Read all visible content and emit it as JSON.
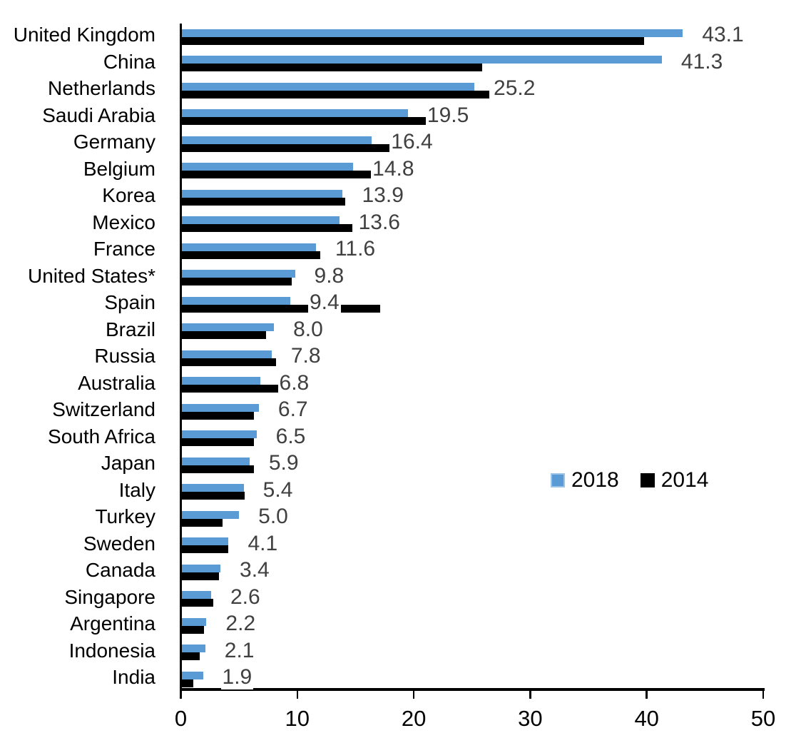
{
  "chart_data": {
    "type": "bar",
    "orientation": "horizontal",
    "title": "",
    "categories": [
      "United Kingdom",
      "China",
      "Netherlands",
      "Saudi Arabia",
      "Germany",
      "Belgium",
      "Korea",
      "Mexico",
      "France",
      "United States*",
      "Spain",
      "Brazil",
      "Russia",
      "Australia",
      "Switzerland",
      "South Africa",
      "Japan",
      "Italy",
      "Turkey",
      "Sweden",
      "Canada",
      "Singapore",
      "Argentina",
      "Indonesia",
      "India"
    ],
    "series": [
      {
        "name": "2018",
        "color": "#5B9BD5",
        "values": [
          43.1,
          41.3,
          25.2,
          19.5,
          16.4,
          14.8,
          13.9,
          13.6,
          11.6,
          9.8,
          9.4,
          8.0,
          7.8,
          6.8,
          6.7,
          6.5,
          5.9,
          5.4,
          5.0,
          4.1,
          3.4,
          2.6,
          2.2,
          2.1,
          1.9
        ]
      },
      {
        "name": "2014",
        "color": "#000000",
        "values": [
          39.8,
          25.9,
          26.5,
          21.2,
          17.9,
          17.1,
          14.1,
          14.7,
          12.0,
          9.5,
          17.1,
          7.3,
          8.2,
          9.6,
          6.3,
          6.3,
          6.3,
          5.5,
          3.6,
          4.1,
          3.3,
          2.8,
          2.0,
          1.6,
          1.1
        ]
      }
    ],
    "data_labels": {
      "series": "2018",
      "color": "#404040",
      "values": [
        "43.1",
        "41.3",
        "25.2",
        "19.5",
        "16.4",
        "14.8",
        "13.9",
        "13.6",
        "11.6",
        "9.8",
        "9.4",
        "8.0",
        "7.8",
        "6.8",
        "6.7",
        "6.5",
        "5.9",
        "5.4",
        "5.0",
        "4.1",
        "3.4",
        "2.6",
        "2.2",
        "2.1",
        "1.9"
      ]
    },
    "xlim": [
      0,
      50
    ],
    "x_ticks": [
      "0",
      "10",
      "20",
      "30",
      "40",
      "50"
    ],
    "x_tick_values": [
      0,
      10,
      20,
      30,
      40,
      50
    ],
    "grid": false,
    "legend": {
      "position": "center-right",
      "entries": [
        {
          "label": "2018",
          "color": "#5B9BD5",
          "border": "#9DC3E6"
        },
        {
          "label": "2014",
          "color": "#000000",
          "border": "#000000"
        }
      ]
    },
    "axis_color": "#000000"
  }
}
